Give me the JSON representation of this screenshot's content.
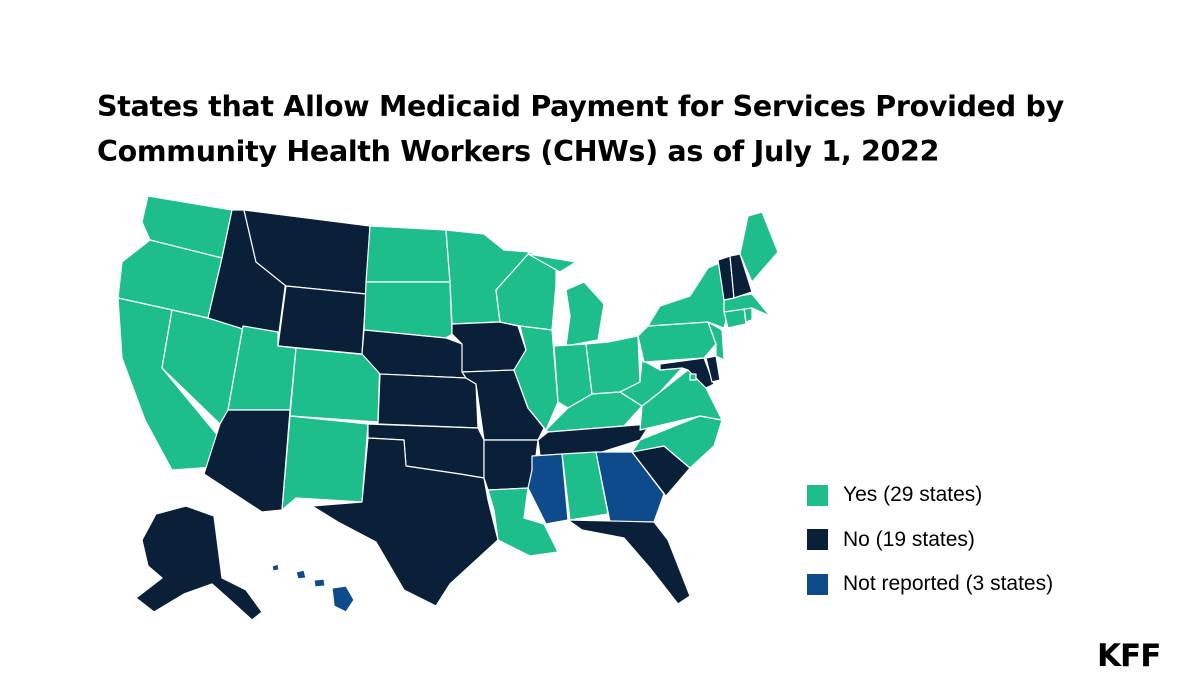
{
  "title": "States that Allow Medicaid Payment for Services Provided by Community Health Workers (CHWs) as of July 1, 2022",
  "colors": {
    "yes": "#1dbe8c",
    "no": "#0a1f38",
    "not_reported": "#0d4b8c"
  },
  "legend": [
    {
      "key": "yes",
      "label": "Yes (29 states)",
      "color": "#1dbe8c"
    },
    {
      "key": "no",
      "label": "No (19 states)",
      "color": "#0a1f38"
    },
    {
      "key": "not_reported",
      "label": "Not reported (3 states)",
      "color": "#0d4b8c"
    }
  ],
  "logo": "KFF",
  "map_data": {
    "type": "choropleth-us-states",
    "states": {
      "WA": "yes",
      "OR": "yes",
      "CA": "yes",
      "NV": "yes",
      "UT": "yes",
      "CO": "yes",
      "NM": "yes",
      "ND": "yes",
      "SD": "yes",
      "MN": "yes",
      "WI": "yes",
      "MI": "yes",
      "IL": "yes",
      "IN": "yes",
      "OH": "yes",
      "KY": "yes",
      "WV": "yes",
      "VA": "yes",
      "NC": "yes",
      "PA": "yes",
      "NY": "yes",
      "NJ": "yes",
      "CT": "yes",
      "RI": "yes",
      "MA": "yes",
      "ME": "yes",
      "LA": "yes",
      "AL": "yes",
      "DC": "yes",
      "ID": "no",
      "MT": "no",
      "WY": "no",
      "AZ": "no",
      "NE": "no",
      "KS": "no",
      "OK": "no",
      "TX": "no",
      "IA": "no",
      "MO": "no",
      "AR": "no",
      "TN": "no",
      "SC": "no",
      "FL": "no",
      "MD": "no",
      "DE": "no",
      "VT": "no",
      "NH": "no",
      "AK": "no",
      "MS": "not_reported",
      "GA": "not_reported",
      "HI": "not_reported"
    }
  }
}
